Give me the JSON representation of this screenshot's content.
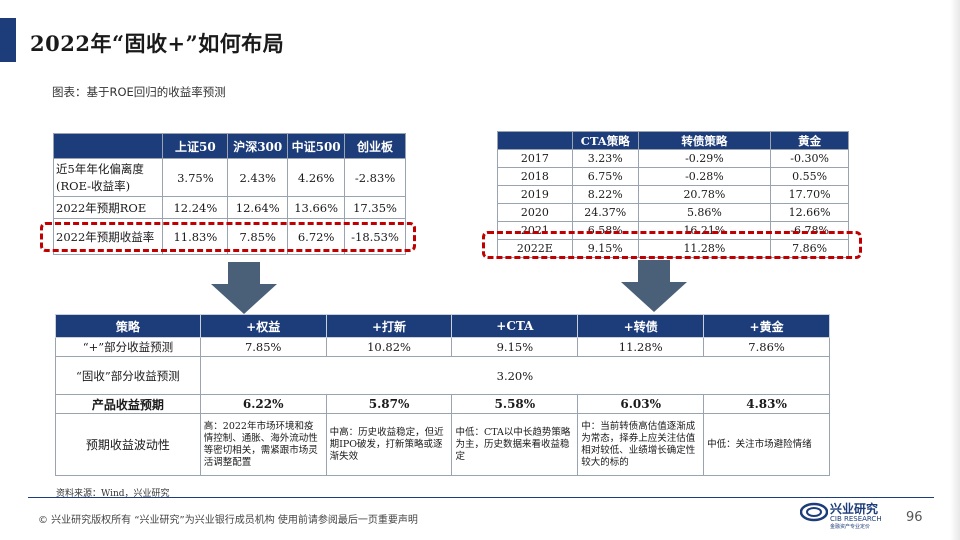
{
  "title": "2022年“固收+”如何布局",
  "subtitle": "图表：基于ROE回归的收益率预测",
  "colors": {
    "header_bg": "#1d3c7a",
    "highlight": "#c00000",
    "arrow": "#4a6079"
  },
  "roe_table": {
    "headers": [
      "",
      "上证50",
      "沪深300",
      "中证500",
      "创业板"
    ],
    "rows": [
      {
        "label": "近5年年化偏离度(ROE-收益率)",
        "values": [
          "3.75%",
          "2.43%",
          "4.26%",
          "-2.83%"
        ]
      },
      {
        "label": "2022年预期ROE",
        "values": [
          "12.24%",
          "12.64%",
          "13.66%",
          "17.35%"
        ]
      },
      {
        "label": "2022年预期收益率",
        "values": [
          "11.83%",
          "7.85%",
          "6.72%",
          "-18.53%"
        ]
      }
    ]
  },
  "strategy_table": {
    "headers": [
      "",
      "CTA策略",
      "转债策略",
      "黄金"
    ],
    "rows": [
      {
        "year": "2017",
        "values": [
          "3.23%",
          "-0.29%",
          "-0.30%"
        ]
      },
      {
        "year": "2018",
        "values": [
          "6.75%",
          "-0.28%",
          "0.55%"
        ]
      },
      {
        "year": "2019",
        "values": [
          "8.22%",
          "20.78%",
          "17.70%"
        ]
      },
      {
        "year": "2020",
        "values": [
          "24.37%",
          "5.86%",
          "12.66%"
        ]
      },
      {
        "year": "2021",
        "values": [
          "6.58%",
          "16.21%",
          "-6.78%"
        ]
      },
      {
        "year": "2022E",
        "values": [
          "9.15%",
          "11.28%",
          "7.86%"
        ]
      }
    ]
  },
  "summary_table": {
    "headers": [
      "策略",
      "+权益",
      "+打新",
      "+CTA",
      "+转债",
      "+黄金"
    ],
    "plus_row": {
      "label": "“+”部分收益预测",
      "values": [
        "7.85%",
        "10.82%",
        "9.15%",
        "11.28%",
        "7.86%"
      ]
    },
    "fixed_row": {
      "label": "“固收”部分收益预测",
      "value": "3.20%"
    },
    "product_row": {
      "label": "产品收益预期",
      "values": [
        "6.22%",
        "5.87%",
        "5.58%",
        "6.03%",
        "4.83%"
      ]
    },
    "volatility_row": {
      "label": "预期收益波动性",
      "values": [
        "高：2022年市场环境和疫情控制、通胀、海外流动性等密切相关，需紧跟市场灵活调整配置",
        "中高：历史收益稳定，但近期IPO破发，打新策略或逐渐失效",
        "中低：CTA以中长趋势策略为主，历史数据来看收益稳定",
        "中：当前转债高估值逐渐成为常态，择券上应关注估值相对较低、业绩增长确定性较大的标的",
        "中低：关注市场避险情绪"
      ]
    }
  },
  "source": "资料来源：Wind，兴业研究",
  "footer": "© 兴业研究版权所有 “兴业研究”为兴业银行成员机构 使用前请参阅最后一页重要声明",
  "logo": {
    "cn": "兴业研究",
    "en": "CIB RESEARCH",
    "tagline": "金融资产专业定价"
  },
  "page_number": "96"
}
